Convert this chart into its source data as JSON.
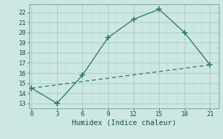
{
  "xlabel": "Humidex (Indice chaleur)",
  "line1_x": [
    0,
    3,
    6,
    9,
    12,
    15,
    18,
    21
  ],
  "line1_y": [
    14.5,
    13.0,
    15.8,
    19.5,
    21.3,
    22.3,
    20.0,
    16.8
  ],
  "line2_x": [
    0,
    21
  ],
  "line2_y": [
    14.5,
    16.8
  ],
  "line_color": "#2d7a6e",
  "bg_color": "#cde8e2",
  "grid_major_color": "#b0cec8",
  "grid_minor_color": "#c2dcd7",
  "xlim": [
    -0.3,
    22.0
  ],
  "ylim": [
    12.5,
    22.8
  ],
  "xticks": [
    0,
    3,
    6,
    9,
    12,
    15,
    18,
    21
  ],
  "yticks": [
    13,
    14,
    15,
    16,
    17,
    18,
    19,
    20,
    21,
    22
  ],
  "tick_fontsize": 6.5,
  "xlabel_fontsize": 7.5,
  "marker_size": 3.5,
  "linewidth": 1.0
}
